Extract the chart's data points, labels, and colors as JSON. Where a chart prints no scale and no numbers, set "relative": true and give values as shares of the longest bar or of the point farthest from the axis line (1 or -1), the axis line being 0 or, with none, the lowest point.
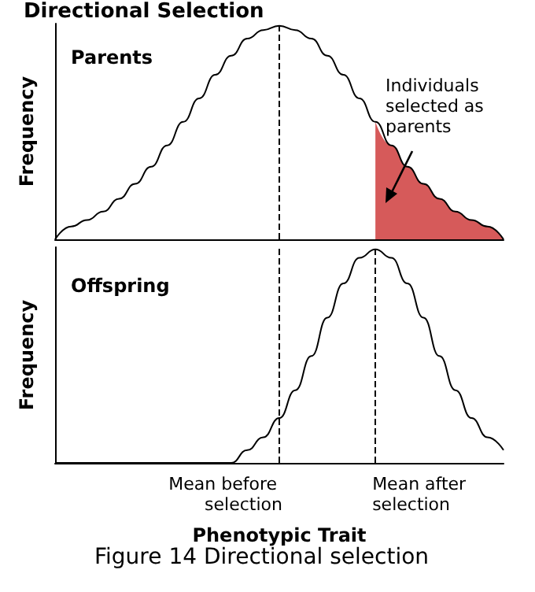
{
  "chart_data": [
    {
      "type": "line",
      "title": "Directional Selection",
      "ylabel": "Frequency",
      "relative": true,
      "tick_labels": false,
      "grid": false,
      "marker": "none",
      "categories": [
        null,
        null,
        null,
        null,
        null,
        null,
        null,
        null,
        null,
        null,
        null,
        null,
        null,
        null,
        null,
        null,
        null,
        null,
        null,
        null,
        null,
        null,
        null,
        null,
        null,
        null,
        null,
        null,
        null
      ],
      "series": [
        {
          "color": "#000000",
          "values": [
            0,
            0.06,
            0.09,
            0.13,
            0.19,
            0.26,
            0.34,
            0.44,
            0.55,
            0.66,
            0.77,
            0.86,
            0.94,
            0.98,
            1,
            0.98,
            0.94,
            0.86,
            0.77,
            0.66,
            0.55,
            0.44,
            0.34,
            0.26,
            0.19,
            0.13,
            0.09,
            0.06,
            0
          ]
        },
        {
          "type": "area",
          "color": "#d65a5a",
          "values": [
            null,
            null,
            null,
            null,
            null,
            null,
            null,
            null,
            null,
            null,
            null,
            null,
            null,
            null,
            null,
            null,
            null,
            null,
            null,
            null,
            0.55,
            0.44,
            0.34,
            0.26,
            0.19,
            0.13,
            0.09,
            0.06,
            0
          ]
        }
      ],
      "annotations": [
        "Parents",
        "Individuals selected as parents"
      ]
    },
    {
      "type": "line",
      "ylabel": "Frequency",
      "xlabel": "Phenotypic Trait",
      "relative": true,
      "tick_labels": false,
      "grid": false,
      "marker": "none",
      "categories": [
        null,
        null,
        null,
        null,
        null,
        null,
        null,
        null,
        null,
        null,
        null,
        null,
        null,
        null,
        null,
        null,
        null,
        null,
        null,
        null,
        null,
        null,
        null,
        null,
        null,
        null,
        null,
        null,
        null
      ],
      "series": [
        {
          "color": "#000000",
          "values": [
            0,
            0,
            0,
            0,
            0,
            0,
            0,
            0,
            0,
            0,
            0,
            0,
            0.06,
            0.12,
            0.21,
            0.34,
            0.5,
            0.68,
            0.84,
            0.96,
            1,
            0.96,
            0.84,
            0.68,
            0.5,
            0.34,
            0.21,
            0.12,
            0.06
          ]
        }
      ],
      "annotations": [
        "Offspring",
        "Mean before selection",
        "Mean after selection",
        "Figure 14 Directional selection"
      ]
    }
  ]
}
